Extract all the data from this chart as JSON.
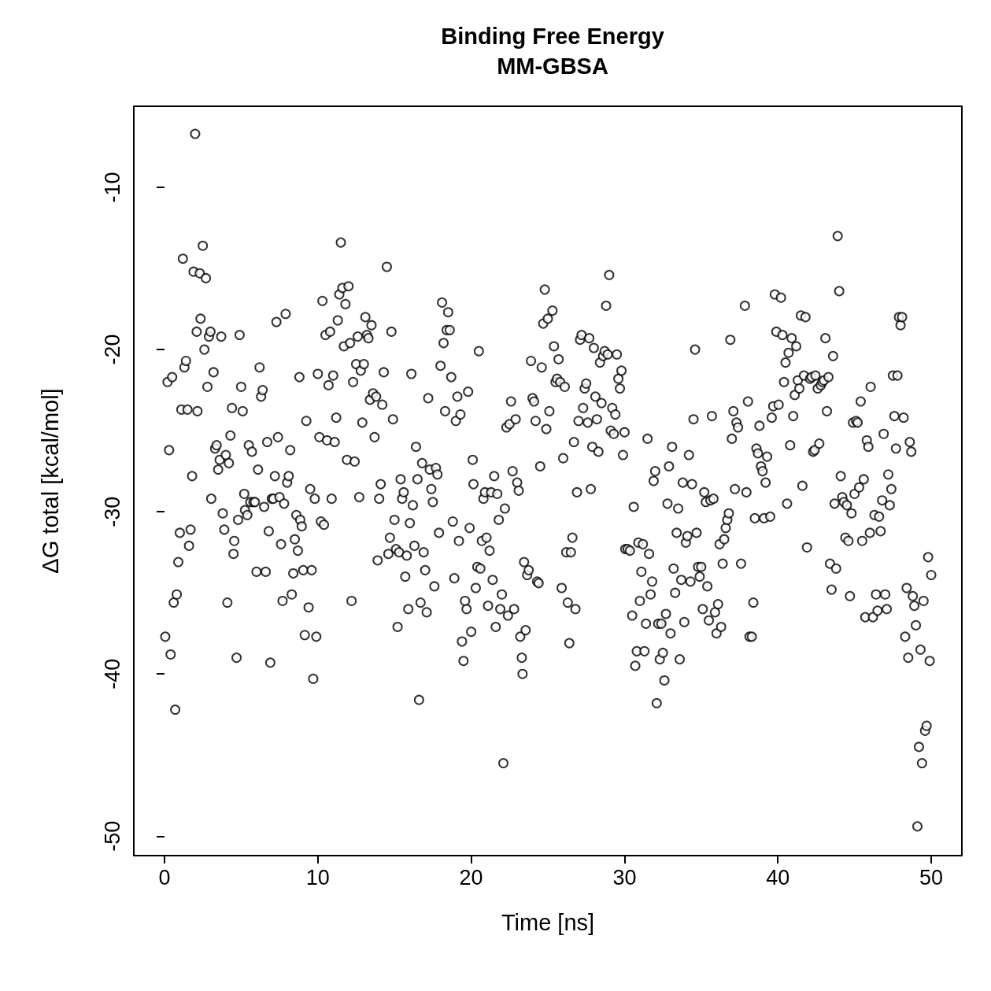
{
  "chart_data": {
    "type": "scatter",
    "title": "Binding Free Energy\nMM-GBSA",
    "xlabel": "Time [ns]",
    "ylabel": "ΔG total [kcal/mol]",
    "xlim": [
      -2,
      52
    ],
    "ylim": [
      -51.2,
      -5.0
    ],
    "xticks": [
      0,
      10,
      20,
      30,
      40,
      50
    ],
    "yticks": [
      -50,
      -40,
      -30,
      -20,
      -10
    ],
    "marker": "circle",
    "series": [
      {
        "color": "#000000",
        "x": [
          0.05,
          0.2,
          0.3,
          0.4,
          0.5,
          0.6,
          0.7,
          0.8,
          0.9,
          1.0,
          1.1,
          1.2,
          1.3,
          1.4,
          1.5,
          1.6,
          1.7,
          1.8,
          1.9,
          2.0,
          2.1,
          2.15,
          2.3,
          2.35,
          2.5,
          2.6,
          2.7,
          2.8,
          2.9,
          3.0,
          3.05,
          3.2,
          3.3,
          3.4,
          3.5,
          3.6,
          3.7,
          3.8,
          3.9,
          4.0,
          4.1,
          4.2,
          4.3,
          4.4,
          4.5,
          4.55,
          4.7,
          4.8,
          4.9,
          5.0,
          5.1,
          5.2,
          5.25,
          5.4,
          5.5,
          5.6,
          5.7,
          5.8,
          5.9,
          6.0,
          6.1,
          6.2,
          6.3,
          6.4,
          6.5,
          6.6,
          6.7,
          6.8,
          6.9,
          7.0,
          7.1,
          7.2,
          7.3,
          7.4,
          7.5,
          7.6,
          7.7,
          7.8,
          7.9,
          8.0,
          8.1,
          8.2,
          8.3,
          8.4,
          8.5,
          8.6,
          8.7,
          8.8,
          8.85,
          8.95,
          9.05,
          9.15,
          9.25,
          9.4,
          9.5,
          9.6,
          9.7,
          9.8,
          9.9,
          10.0,
          10.1,
          10.2,
          10.3,
          10.4,
          10.5,
          10.6,
          10.7,
          10.8,
          10.9,
          11.0,
          11.1,
          11.2,
          11.3,
          11.4,
          11.5,
          11.6,
          11.7,
          11.8,
          11.9,
          12.0,
          12.1,
          12.2,
          12.3,
          12.4,
          12.5,
          12.6,
          12.7,
          12.8,
          12.9,
          13.0,
          13.1,
          13.2,
          13.3,
          13.4,
          13.5,
          13.6,
          13.7,
          13.8,
          13.9,
          14.0,
          14.1,
          14.2,
          14.3,
          14.5,
          14.6,
          14.7,
          14.8,
          14.9,
          15.0,
          15.1,
          15.2,
          15.3,
          15.4,
          15.5,
          15.6,
          15.7,
          15.8,
          15.9,
          16.0,
          16.1,
          16.2,
          16.3,
          16.4,
          16.5,
          16.6,
          16.7,
          16.8,
          16.9,
          17.0,
          17.1,
          17.2,
          17.3,
          17.4,
          17.5,
          17.6,
          17.7,
          17.8,
          17.9,
          18.0,
          18.1,
          18.2,
          18.3,
          18.4,
          18.5,
          18.6,
          18.7,
          18.8,
          18.9,
          19.0,
          19.1,
          19.2,
          19.3,
          19.4,
          19.5,
          19.6,
          19.7,
          19.8,
          19.9,
          20.0,
          20.1,
          20.15,
          20.3,
          20.4,
          20.5,
          20.6,
          20.7,
          20.8,
          20.9,
          21.0,
          21.1,
          21.2,
          21.3,
          21.4,
          21.5,
          21.6,
          21.7,
          21.8,
          21.9,
          22.0,
          22.1,
          22.2,
          22.3,
          22.4,
          22.5,
          22.6,
          22.7,
          22.8,
          22.9,
          23.0,
          23.1,
          23.2,
          23.3,
          23.35,
          23.45,
          23.55,
          23.65,
          23.75,
          23.9,
          24.0,
          24.1,
          24.2,
          24.3,
          24.4,
          24.5,
          24.6,
          24.7,
          24.8,
          24.9,
          25.0,
          25.1,
          25.3,
          25.4,
          25.5,
          25.6,
          25.7,
          25.8,
          25.9,
          26.0,
          26.1,
          26.2,
          26.3,
          26.4,
          26.5,
          26.6,
          26.7,
          26.8,
          26.9,
          27.0,
          27.1,
          27.2,
          27.3,
          27.4,
          27.5,
          27.6,
          27.7,
          27.8,
          27.9,
          28.0,
          28.1,
          28.2,
          28.3,
          28.4,
          28.5,
          28.6,
          28.7,
          28.8,
          28.9,
          29.0,
          29.1,
          29.2,
          29.3,
          29.4,
          29.5,
          29.6,
          29.7,
          29.8,
          29.9,
          30.0,
          30.05,
          30.2,
          30.35,
          30.5,
          30.6,
          30.7,
          30.8,
          30.9,
          31.0,
          31.1,
          31.2,
          31.3,
          31.4,
          31.5,
          31.6,
          31.7,
          31.8,
          31.9,
          32.0,
          32.1,
          32.2,
          32.3,
          32.4,
          32.5,
          32.6,
          32.7,
          32.8,
          32.9,
          33.0,
          33.1,
          33.2,
          33.3,
          33.4,
          33.5,
          33.6,
          33.7,
          33.8,
          33.9,
          34.0,
          34.1,
          34.2,
          34.3,
          34.4,
          34.5,
          34.6,
          34.7,
          34.8,
          34.9,
          35.0,
          35.1,
          35.2,
          35.3,
          35.4,
          35.5,
          35.6,
          35.7,
          35.8,
          35.9,
          36.0,
          36.1,
          36.2,
          36.3,
          36.4,
          36.5,
          36.6,
          36.7,
          36.8,
          36.9,
          37.0,
          37.1,
          37.2,
          37.3,
          37.4,
          37.6,
          37.85,
          37.95,
          38.05,
          38.15,
          38.3,
          38.4,
          38.5,
          38.6,
          38.7,
          38.8,
          38.9,
          39.0,
          39.1,
          39.2,
          39.3,
          39.5,
          39.6,
          39.7,
          39.8,
          39.9,
          40.05,
          40.2,
          40.3,
          40.4,
          40.5,
          40.6,
          40.7,
          40.8,
          40.9,
          41.0,
          41.1,
          41.2,
          41.3,
          41.4,
          41.5,
          41.6,
          41.7,
          41.8,
          41.9,
          42.1,
          42.2,
          42.3,
          42.4,
          42.45,
          42.6,
          42.7,
          42.8,
          42.9,
          43.0,
          43.1,
          43.2,
          43.3,
          43.4,
          43.5,
          43.6,
          43.7,
          43.8,
          43.9,
          44.0,
          44.1,
          44.2,
          44.3,
          44.4,
          44.5,
          44.6,
          44.7,
          44.8,
          44.9,
          45.0,
          45.1,
          45.2,
          45.3,
          45.4,
          45.5,
          45.6,
          45.7,
          45.8,
          45.9,
          46.0,
          46.05,
          46.2,
          46.3,
          46.4,
          46.5,
          46.6,
          46.7,
          46.8,
          46.9,
          47.0,
          47.1,
          47.2,
          47.3,
          47.4,
          47.5,
          47.6,
          47.7,
          47.8,
          47.9,
          48.0,
          48.1,
          48.2,
          48.3,
          48.4,
          48.5,
          48.6,
          48.7,
          48.8,
          48.9,
          49.0,
          49.1,
          49.2,
          49.3,
          49.4,
          49.5,
          49.6,
          49.7,
          49.8,
          49.9,
          50.0
        ],
        "values": [
          -37.7,
          -22.0,
          -26.2,
          -38.8,
          -21.7,
          -35.6,
          -42.2,
          -35.1,
          -33.1,
          -31.3,
          -23.7,
          -14.4,
          -21.1,
          -20.7,
          -23.7,
          -32.1,
          -31.1,
          -27.8,
          -15.2,
          -6.7,
          -18.9,
          -23.8,
          -15.3,
          -18.1,
          -13.6,
          -20.0,
          -15.6,
          -22.3,
          -19.2,
          -18.9,
          -29.2,
          -21.4,
          -26.1,
          -25.9,
          -27.4,
          -26.8,
          -19.2,
          -30.1,
          -31.1,
          -26.5,
          -35.6,
          -27.0,
          -25.3,
          -23.6,
          -32.6,
          -31.8,
          -39.0,
          -30.5,
          -19.1,
          -22.3,
          -23.8,
          -28.9,
          -29.9,
          -30.2,
          -25.9,
          -29.4,
          -26.3,
          -29.4,
          -29.4,
          -33.7,
          -27.4,
          -21.1,
          -22.9,
          -22.5,
          -29.7,
          -33.7,
          -25.7,
          -31.2,
          -39.3,
          -29.2,
          -29.2,
          -27.8,
          -18.3,
          -25.4,
          -29.1,
          -32.0,
          -35.5,
          -29.5,
          -17.8,
          -28.2,
          -27.8,
          -26.2,
          -35.1,
          -33.8,
          -31.7,
          -30.2,
          -32.4,
          -21.7,
          -30.5,
          -30.9,
          -33.6,
          -37.6,
          -24.4,
          -35.9,
          -28.6,
          -33.6,
          -40.3,
          -29.2,
          -37.7,
          -21.5,
          -25.4,
          -30.6,
          -17.0,
          -30.8,
          -19.1,
          -25.6,
          -22.2,
          -18.9,
          -29.2,
          -21.6,
          -25.7,
          -24.2,
          -18.2,
          -16.6,
          -13.4,
          -16.2,
          -19.8,
          -17.2,
          -26.8,
          -16.1,
          -19.6,
          -35.5,
          -22.0,
          -26.9,
          -20.9,
          -19.2,
          -29.1,
          -21.3,
          -24.5,
          -20.9,
          -18.0,
          -19.1,
          -19.3,
          -23.1,
          -18.5,
          -22.7,
          -25.4,
          -22.9,
          -33.0,
          -29.2,
          -28.3,
          -23.4,
          -21.4,
          -14.9,
          -32.6,
          -31.6,
          -18.9,
          -24.3,
          -30.5,
          -32.3,
          -37.1,
          -32.5,
          -28.0,
          -29.2,
          -28.8,
          -34.0,
          -32.7,
          -36.0,
          -30.7,
          -21.5,
          -29.6,
          -32.1,
          -26.0,
          -28.0,
          -41.6,
          -35.6,
          -27.0,
          -32.5,
          -33.6,
          -36.2,
          -23.0,
          -27.4,
          -28.6,
          -29.4,
          -34.6,
          -27.3,
          -27.7,
          -31.3,
          -21.0,
          -17.1,
          -19.6,
          -23.8,
          -18.8,
          -17.7,
          -18.8,
          -21.7,
          -30.6,
          -34.1,
          -24.4,
          -22.9,
          -31.8,
          -24.0,
          -38.0,
          -39.2,
          -35.5,
          -36.0,
          -22.6,
          -31.0,
          -37.4,
          -26.8,
          -28.3,
          -34.7,
          -33.4,
          -20.1,
          -33.5,
          -31.8,
          -29.2,
          -28.8,
          -31.6,
          -35.8,
          -32.4,
          -28.8,
          -34.2,
          -27.8,
          -37.1,
          -28.9,
          -30.5,
          -36.0,
          -35.1,
          -45.5,
          -29.8,
          -24.8,
          -36.4,
          -24.6,
          -23.2,
          -27.5,
          -36.0,
          -24.3,
          -28.2,
          -28.7,
          -37.7,
          -39.0,
          -40.0,
          -33.1,
          -37.3,
          -33.9,
          -33.6,
          -20.7,
          -23.0,
          -23.2,
          -24.4,
          -34.3,
          -34.4,
          -27.2,
          -21.1,
          -18.4,
          -16.3,
          -24.9,
          -18.1,
          -23.8,
          -17.6,
          -19.8,
          -22.0,
          -21.8,
          -20.6,
          -22.0,
          -34.7,
          -26.7,
          -22.3,
          -32.5,
          -35.6,
          -38.1,
          -32.5,
          -31.6,
          -25.7,
          -36.0,
          -28.8,
          -24.4,
          -19.4,
          -19.1,
          -23.6,
          -22.4,
          -22.1,
          -24.5,
          -19.3,
          -28.6,
          -26.0,
          -19.9,
          -22.9,
          -24.3,
          -26.3,
          -20.8,
          -23.3,
          -20.4,
          -20.1,
          -17.3,
          -20.3,
          -15.4,
          -25.0,
          -23.6,
          -25.2,
          -24.0,
          -20.3,
          -21.8,
          -22.4,
          -21.3,
          -26.5,
          -25.1,
          -32.3,
          -32.3,
          -32.4,
          -36.4,
          -29.7,
          -39.5,
          -38.6,
          -31.9,
          -35.5,
          -33.7,
          -32.0,
          -38.6,
          -36.9,
          -25.5,
          -32.6,
          -35.1,
          -34.3,
          -28.1,
          -27.5,
          -41.8,
          -36.9,
          -39.1,
          -36.9,
          -38.7,
          -40.4,
          -36.3,
          -29.5,
          -27.2,
          -37.5,
          -26.0,
          -33.5,
          -35.0,
          -31.3,
          -29.8,
          -39.1,
          -34.2,
          -28.2,
          -36.8,
          -31.9,
          -31.5,
          -26.5,
          -34.3,
          -28.3,
          -24.3,
          -20.0,
          -31.3,
          -33.4,
          -34.0,
          -33.4,
          -36.0,
          -28.8,
          -29.4,
          -34.6,
          -36.7,
          -29.3,
          -24.1,
          -29.2,
          -36.2,
          -37.5,
          -35.7,
          -32.0,
          -37.1,
          -33.2,
          -31.7,
          -31.0,
          -30.5,
          -30.1,
          -19.4,
          -25.5,
          -23.8,
          -28.6,
          -24.5,
          -24.8,
          -33.2,
          -17.3,
          -28.8,
          -23.2,
          -37.7,
          -37.7,
          -35.6,
          -30.4,
          -26.1,
          -26.4,
          -24.7,
          -27.2,
          -27.5,
          -30.4,
          -28.2,
          -26.6,
          -30.3,
          -24.2,
          -23.5,
          -16.6,
          -18.9,
          -23.4,
          -16.8,
          -19.1,
          -22.0,
          -20.8,
          -29.5,
          -20.2,
          -25.9,
          -19.3,
          -24.1,
          -22.8,
          -19.8,
          -21.9,
          -22.4,
          -17.9,
          -28.4,
          -21.6,
          -18.0,
          -32.2,
          -21.8,
          -21.7,
          -26.3,
          -26.2,
          -21.6,
          -22.4,
          -25.8,
          -22.2,
          -22.0,
          -21.9,
          -19.3,
          -23.8,
          -21.7,
          -33.2,
          -34.8,
          -20.4,
          -29.5,
          -33.5,
          -13.0,
          -16.4,
          -27.8,
          -29.1,
          -29.4,
          -31.6,
          -29.6,
          -31.8,
          -35.2,
          -30.1,
          -24.5,
          -28.9,
          -24.4,
          -24.5,
          -28.5,
          -23.2,
          -31.8,
          -28.0,
          -36.5,
          -25.6,
          -26.0,
          -31.3,
          -22.3,
          -36.5,
          -30.2,
          -35.1,
          -36.1,
          -30.3,
          -31.2,
          -29.3,
          -25.2,
          -35.1,
          -36.0,
          -27.7,
          -29.6,
          -28.6,
          -21.6,
          -24.1,
          -26.1,
          -21.6,
          -18.0,
          -18.5,
          -18.0,
          -24.2,
          -37.7,
          -34.7,
          -39.0,
          -25.7,
          -26.3,
          -35.2,
          -35.8,
          -37.0,
          -49.4,
          -44.5,
          -38.5,
          -45.5,
          -35.5,
          -43.5,
          -43.2,
          -32.8,
          -39.2,
          -33.9
        ]
      }
    ]
  }
}
